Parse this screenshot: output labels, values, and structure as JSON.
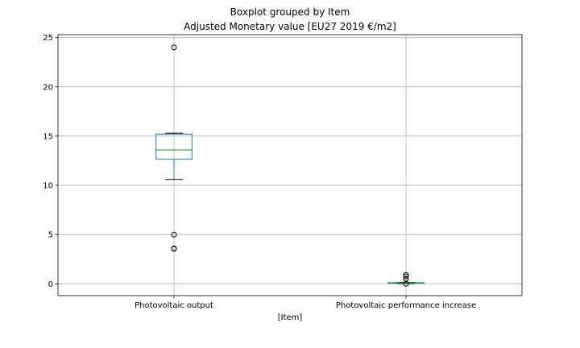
{
  "chart_data": {
    "type": "boxplot",
    "suptitle": "Boxplot grouped by Item",
    "title": "Adjusted Monetary value [EU27 2019 €/m2]",
    "xlabel": "[Item]",
    "ylabel": "",
    "ylim": [
      -1.2,
      25.3
    ],
    "yticks": [
      0,
      5,
      10,
      15,
      20,
      25
    ],
    "grid": true,
    "categories": [
      "Photovoltaic output",
      "Photovoltaic performance increase"
    ],
    "boxes": [
      {
        "category": "Photovoltaic output",
        "whisker_low": 10.6,
        "q1": 12.65,
        "median": 13.6,
        "q3": 15.2,
        "whisker_high": 15.3,
        "outliers": [
          24.0,
          5.0,
          3.6,
          3.55
        ]
      },
      {
        "category": "Photovoltaic performance increase",
        "whisker_low": 0.02,
        "q1": 0.05,
        "median": 0.08,
        "q3": 0.12,
        "whisker_high": 0.15,
        "outliers": [
          0.9,
          0.75,
          0.5,
          0.0
        ]
      }
    ],
    "colors": {
      "box": "#1f77b4",
      "median": "#2ca02c",
      "whisker": "#1f77b4",
      "cap": "#000000",
      "grid": "#b0b0b0",
      "outlier": "#000000"
    }
  }
}
